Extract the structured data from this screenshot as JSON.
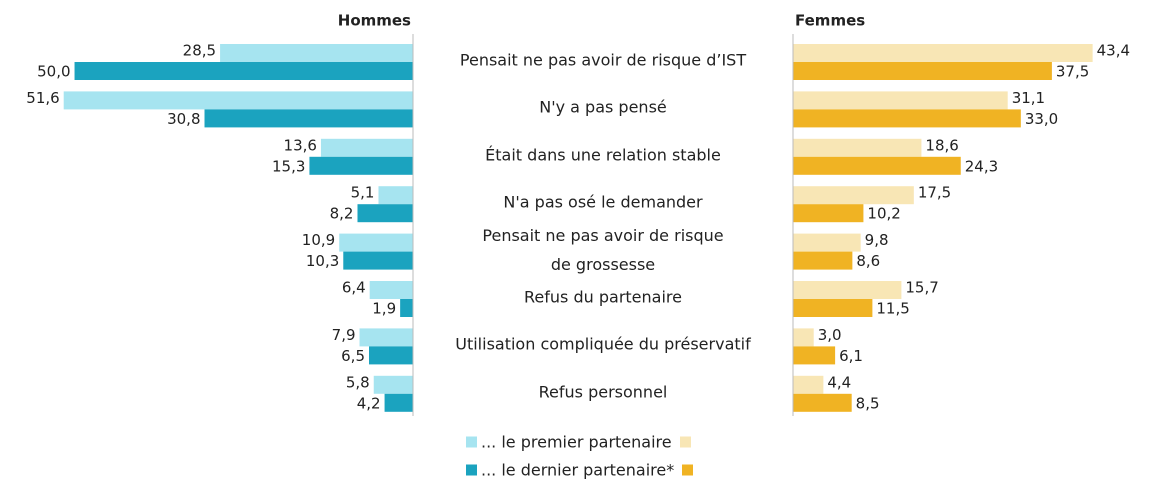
{
  "chart_data": {
    "type": "bar",
    "orientation": "horizontal",
    "categories": [
      "Pensait ne pas avoir de risque d’IST",
      "N'y a pas pensé",
      "Était dans une relation stable",
      "N'a pas osé le demander",
      "Pensait ne pas avoir de risque\nde grossesse",
      "Refus du partenaire",
      "Utilisation compliquée du préservatif",
      "Refus personnel"
    ],
    "xlim": [
      0,
      52
    ],
    "panels": [
      {
        "title": "Hommes",
        "series": [
          {
            "name": "... le premier partenaire",
            "color": "#a6e4f0",
            "values": [
              28.5,
              51.6,
              13.6,
              5.1,
              10.9,
              6.4,
              7.9,
              5.8
            ],
            "value_labels": [
              "28,5",
              "51,6",
              "13,6",
              "5,1",
              "10,9",
              "6,4",
              "7,9",
              "5,8"
            ]
          },
          {
            "name": "... le dernier partenaire*",
            "color": "#1ba3bf",
            "values": [
              50.0,
              30.8,
              15.3,
              8.2,
              10.3,
              1.9,
              6.5,
              4.2
            ],
            "value_labels": [
              "50,0",
              "30,8",
              "15,3",
              "8,2",
              "10,3",
              "1,9",
              "6,5",
              "4,2"
            ]
          }
        ]
      },
      {
        "title": "Femmes",
        "series": [
          {
            "color": "#f8e6b5",
            "values": [
              43.4,
              31.1,
              18.6,
              17.5,
              9.8,
              15.7,
              3.0,
              4.4
            ],
            "value_labels": [
              "43,4",
              "31,1",
              "18,6",
              "17,5",
              "9,8",
              "15,7",
              "3,0",
              "4,4"
            ]
          },
          {
            "color": "#f0b323",
            "values": [
              37.5,
              33.0,
              24.3,
              10.2,
              8.6,
              11.5,
              6.1,
              8.5
            ],
            "value_labels": [
              "37,5",
              "33,0",
              "24,3",
              "10,2",
              "8,6",
              "11,5",
              "6,1",
              "8,5"
            ]
          }
        ]
      }
    ]
  }
}
